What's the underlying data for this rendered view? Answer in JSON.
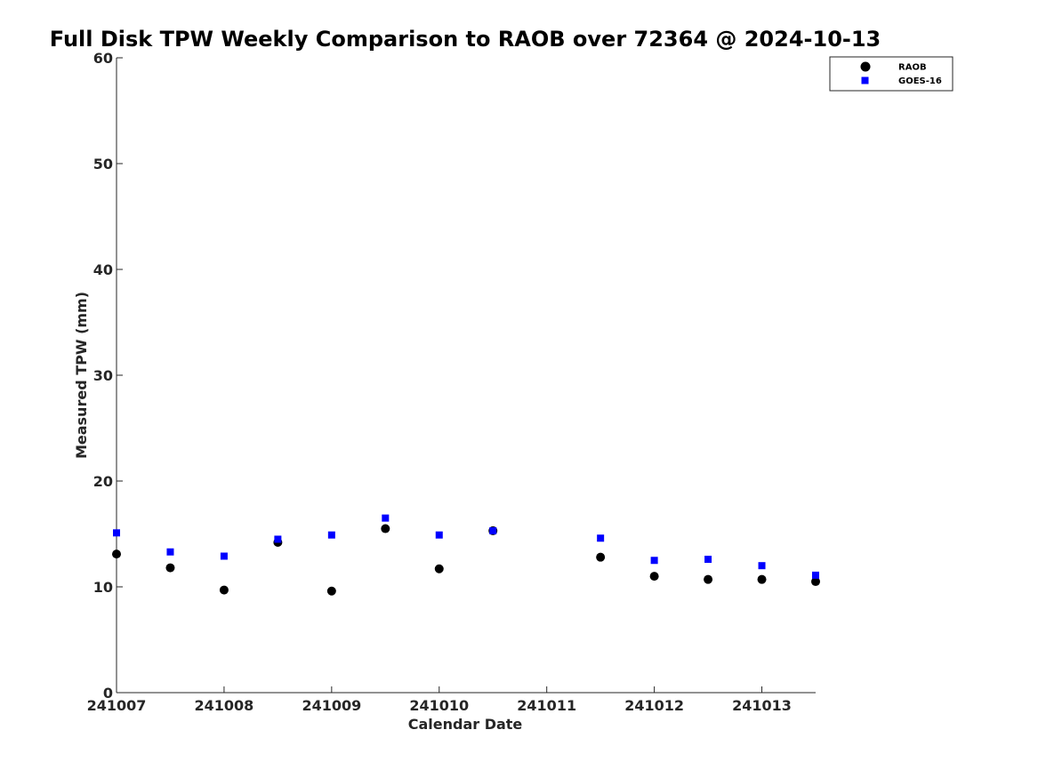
{
  "chart_data": {
    "type": "scatter",
    "title": "Full Disk TPW Weekly Comparison to RAOB over 72364 @ 2024-10-13",
    "xlabel": "Calendar Date",
    "ylabel": "Measured TPW (mm)",
    "xlim": [
      "2024-10-07",
      "2024-10-13 12:00"
    ],
    "ylim": [
      0,
      60
    ],
    "x_ticks": [
      {
        "value": "2024-10-07",
        "label": "241007"
      },
      {
        "value": "2024-10-08",
        "label": "241008"
      },
      {
        "value": "2024-10-09",
        "label": "241009"
      },
      {
        "value": "2024-10-10",
        "label": "241010"
      },
      {
        "value": "2024-10-11",
        "label": "241011"
      },
      {
        "value": "2024-10-12",
        "label": "241012"
      },
      {
        "value": "2024-10-13",
        "label": "241013"
      }
    ],
    "y_ticks": [
      0,
      10,
      20,
      30,
      40,
      50,
      60
    ],
    "grid": false,
    "legend_position": "top-right",
    "series": [
      {
        "name": "RAOB",
        "marker": "circle",
        "color": "#000000",
        "points": [
          {
            "x": "2024-10-07 00:00",
            "y": 13.1
          },
          {
            "x": "2024-10-07 12:00",
            "y": 11.8
          },
          {
            "x": "2024-10-08 00:00",
            "y": 9.7
          },
          {
            "x": "2024-10-08 12:00",
            "y": 14.2
          },
          {
            "x": "2024-10-09 00:00",
            "y": 9.6
          },
          {
            "x": "2024-10-09 12:00",
            "y": 15.5
          },
          {
            "x": "2024-10-10 00:00",
            "y": 11.7
          },
          {
            "x": "2024-10-10 12:00",
            "y": 15.3
          },
          {
            "x": "2024-10-11 12:00",
            "y": 12.8
          },
          {
            "x": "2024-10-12 00:00",
            "y": 11.0
          },
          {
            "x": "2024-10-12 12:00",
            "y": 10.7
          },
          {
            "x": "2024-10-13 00:00",
            "y": 10.7
          },
          {
            "x": "2024-10-13 12:00",
            "y": 10.5
          }
        ]
      },
      {
        "name": "GOES-16",
        "marker": "square",
        "color": "#0000ff",
        "points": [
          {
            "x": "2024-10-07 00:00",
            "y": 15.1
          },
          {
            "x": "2024-10-07 12:00",
            "y": 13.3
          },
          {
            "x": "2024-10-08 00:00",
            "y": 12.9
          },
          {
            "x": "2024-10-08 12:00",
            "y": 14.5
          },
          {
            "x": "2024-10-09 00:00",
            "y": 14.9
          },
          {
            "x": "2024-10-09 12:00",
            "y": 16.5
          },
          {
            "x": "2024-10-10 00:00",
            "y": 14.9
          },
          {
            "x": "2024-10-10 12:00",
            "y": 15.3
          },
          {
            "x": "2024-10-11 12:00",
            "y": 14.6
          },
          {
            "x": "2024-10-12 00:00",
            "y": 12.5
          },
          {
            "x": "2024-10-12 12:00",
            "y": 12.6
          },
          {
            "x": "2024-10-13 00:00",
            "y": 12.0
          },
          {
            "x": "2024-10-13 12:00",
            "y": 11.1
          }
        ]
      }
    ]
  }
}
